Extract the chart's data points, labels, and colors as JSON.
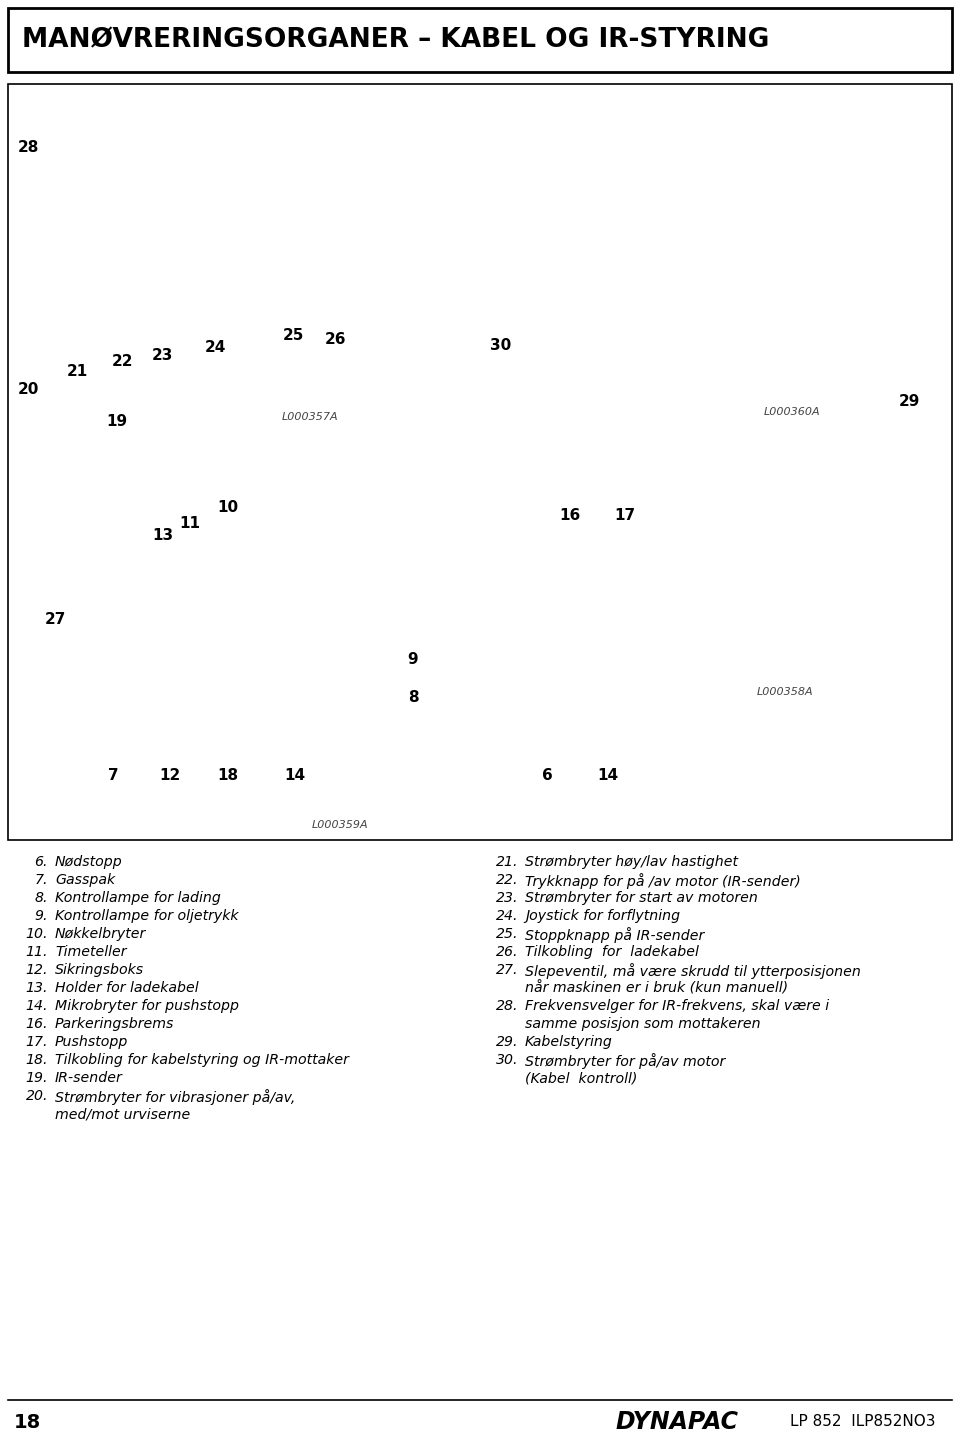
{
  "title": "MANØVRERINGSORGANER – KABEL OG IR-STYRING",
  "background_color": "#ffffff",
  "border_color": "#000000",
  "title_fontsize": 19,
  "page_number": "18",
  "doc_ref": "LP 852  ILP852NO3",
  "brand": "DYNAPAC",
  "left_items": [
    [
      "  6.",
      "Nødstopp"
    ],
    [
      "  7.",
      "Gasspak"
    ],
    [
      "  8.",
      "Kontrollampe for lading"
    ],
    [
      "  9.",
      "Kontrollampe for oljetrykk"
    ],
    [
      "10.",
      "Nøkkelbryter"
    ],
    [
      "11.",
      "Timeteller"
    ],
    [
      "12.",
      "Sikringsboks"
    ],
    [
      "13.",
      "Holder for ladekabel"
    ],
    [
      "14.",
      "Mikrobryter for pushstopp"
    ],
    [
      "16.",
      "Parkeringsbrems"
    ],
    [
      "17.",
      "Pushstopp"
    ],
    [
      "18.",
      "Tilkobling for kabelstyring og IR-mottaker"
    ],
    [
      "19.",
      "IR-sender"
    ],
    [
      "20.",
      "Strømbryter for vibrasjoner på/av,"
    ],
    [
      "",
      "med/mot urviserne"
    ]
  ],
  "right_items": [
    [
      "21.",
      "Strømbryter høy/lav hastighet"
    ],
    [
      "22.",
      "Trykknapp for på /av motor (IR-sender)"
    ],
    [
      "23.",
      "Strømbryter for start av motoren"
    ],
    [
      "24.",
      "Joystick for forflytning"
    ],
    [
      "25.",
      "Stoppknapp på IR-sender"
    ],
    [
      "26.",
      "Tilkobling  for  ladekabel"
    ],
    [
      "27.",
      "Slepeventil, må være skrudd til ytterposisjonen"
    ],
    [
      "",
      "når maskinen er i bruk (kun manuell)"
    ],
    [
      "28.",
      "Frekvensvelger for IR-frekvens, skal være i"
    ],
    [
      "",
      "samme posisjon som mottakeren"
    ],
    [
      "29.",
      "Kabelstyring"
    ],
    [
      "30.",
      "Strømbryter for på/av motor"
    ],
    [
      "",
      "(Kabel  kontroll)"
    ]
  ],
  "text_fontsize": 10.2,
  "num_fontsize": 10.2,
  "callout_fontsize": 11,
  "diagram_label_fontsize": 8.0,
  "diagram_labels": [
    "L000357A",
    "L000360A",
    "L000359A",
    "L000358A"
  ],
  "callout_topleft": [
    [
      "20",
      18,
      390
    ],
    [
      "21",
      67,
      372
    ],
    [
      "22",
      112,
      361
    ],
    [
      "23",
      152,
      355
    ],
    [
      "24",
      205,
      347
    ],
    [
      "25",
      283,
      336
    ],
    [
      "26",
      325,
      340
    ],
    [
      "28",
      18,
      147
    ],
    [
      "19",
      106,
      422
    ]
  ],
  "callout_topright": [
    [
      "30",
      490,
      345
    ],
    [
      "29",
      899,
      402
    ]
  ],
  "callout_botleft": [
    [
      "7",
      113,
      776
    ],
    [
      "12",
      170,
      776
    ],
    [
      "18",
      228,
      776
    ],
    [
      "14",
      295,
      776
    ],
    [
      "8",
      413,
      698
    ],
    [
      "9",
      413,
      660
    ],
    [
      "27",
      55,
      620
    ],
    [
      "13",
      163,
      536
    ],
    [
      "11",
      190,
      523
    ],
    [
      "10",
      228,
      507
    ]
  ],
  "callout_botright": [
    [
      "6",
      547,
      776
    ],
    [
      "14",
      608,
      776
    ],
    [
      "16",
      570,
      515
    ],
    [
      "17",
      625,
      515
    ]
  ]
}
